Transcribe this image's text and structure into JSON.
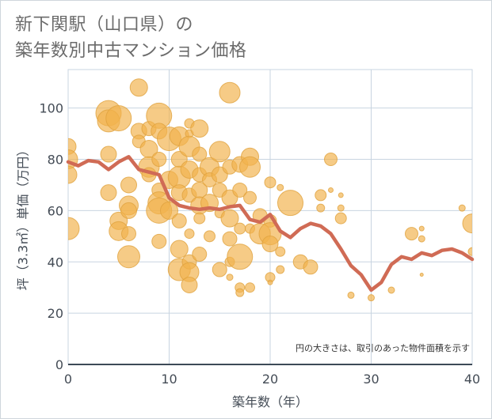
{
  "title": {
    "line1": "新下関駅（山口県）の",
    "line2": "築年数別中古マンション価格"
  },
  "colors": {
    "bubble_fill": "#f2b24c",
    "bubble_stroke": "#e0a23e",
    "line": "#d06b55",
    "grid": "#c8d4e0",
    "axis": "#3d4a57",
    "plot_bg": "#ffffff"
  },
  "chart_data": {
    "type": "scatter",
    "title": "新下関駅（山口県）の築年数別中古マンション価格",
    "xlabel": "築年数（年）",
    "ylabel": "坪（3.3㎡）単価（万円）",
    "xlim": [
      0,
      40
    ],
    "ylim": [
      0,
      115
    ],
    "x_ticks": [
      0,
      10,
      20,
      30,
      40
    ],
    "y_ticks": [
      0,
      20,
      40,
      60,
      80,
      100
    ],
    "grid": true,
    "note": "円の大きさは、取引のあった物件面積を示す",
    "series": [
      {
        "kind": "bubbles",
        "points": [
          {
            "x": 0,
            "y": 85,
            "s": 10
          },
          {
            "x": 0,
            "y": 80,
            "s": 12
          },
          {
            "x": 0,
            "y": 74,
            "s": 11
          },
          {
            "x": 0,
            "y": 53,
            "s": 14
          },
          {
            "x": 4,
            "y": 98,
            "s": 16
          },
          {
            "x": 4,
            "y": 95,
            "s": 14
          },
          {
            "x": 5,
            "y": 96,
            "s": 16
          },
          {
            "x": 4,
            "y": 82,
            "s": 10
          },
          {
            "x": 4,
            "y": 67,
            "s": 10
          },
          {
            "x": 5,
            "y": 56,
            "s": 11
          },
          {
            "x": 5,
            "y": 52,
            "s": 12
          },
          {
            "x": 6,
            "y": 70,
            "s": 10
          },
          {
            "x": 6,
            "y": 62,
            "s": 12
          },
          {
            "x": 6,
            "y": 60,
            "s": 10
          },
          {
            "x": 6,
            "y": 51,
            "s": 9
          },
          {
            "x": 6,
            "y": 42,
            "s": 14
          },
          {
            "x": 7,
            "y": 108,
            "s": 11
          },
          {
            "x": 7,
            "y": 91,
            "s": 10
          },
          {
            "x": 8,
            "y": 92,
            "s": 9
          },
          {
            "x": 7,
            "y": 87,
            "s": 8
          },
          {
            "x": 8,
            "y": 84,
            "s": 11
          },
          {
            "x": 8,
            "y": 77,
            "s": 13
          },
          {
            "x": 8,
            "y": 74,
            "s": 9
          },
          {
            "x": 9,
            "y": 97,
            "s": 16
          },
          {
            "x": 9,
            "y": 91,
            "s": 10
          },
          {
            "x": 9,
            "y": 80,
            "s": 9
          },
          {
            "x": 9,
            "y": 68,
            "s": 9
          },
          {
            "x": 9,
            "y": 63,
            "s": 14
          },
          {
            "x": 9,
            "y": 60,
            "s": 16
          },
          {
            "x": 9,
            "y": 48,
            "s": 9
          },
          {
            "x": 10,
            "y": 88,
            "s": 15
          },
          {
            "x": 10,
            "y": 72,
            "s": 11
          },
          {
            "x": 10,
            "y": 60,
            "s": 11
          },
          {
            "x": 11,
            "y": 89,
            "s": 12
          },
          {
            "x": 11,
            "y": 80,
            "s": 10
          },
          {
            "x": 11,
            "y": 73,
            "s": 14
          },
          {
            "x": 11,
            "y": 67,
            "s": 10
          },
          {
            "x": 11,
            "y": 56,
            "s": 9
          },
          {
            "x": 11,
            "y": 45,
            "s": 11
          },
          {
            "x": 11,
            "y": 37,
            "s": 14
          },
          {
            "x": 12,
            "y": 94,
            "s": 6
          },
          {
            "x": 12,
            "y": 90,
            "s": 5
          },
          {
            "x": 12,
            "y": 85,
            "s": 13
          },
          {
            "x": 12,
            "y": 76,
            "s": 11
          },
          {
            "x": 12,
            "y": 66,
            "s": 9
          },
          {
            "x": 12,
            "y": 51,
            "s": 6
          },
          {
            "x": 12,
            "y": 40,
            "s": 9
          },
          {
            "x": 12,
            "y": 36,
            "s": 12
          },
          {
            "x": 12,
            "y": 31,
            "s": 10
          },
          {
            "x": 13,
            "y": 92,
            "s": 11
          },
          {
            "x": 13,
            "y": 82,
            "s": 9
          },
          {
            "x": 13,
            "y": 74,
            "s": 9
          },
          {
            "x": 13,
            "y": 68,
            "s": 10
          },
          {
            "x": 13,
            "y": 62,
            "s": 11
          },
          {
            "x": 13,
            "y": 57,
            "s": 7
          },
          {
            "x": 13,
            "y": 43,
            "s": 9
          },
          {
            "x": 14,
            "y": 77,
            "s": 12
          },
          {
            "x": 14,
            "y": 72,
            "s": 9
          },
          {
            "x": 14,
            "y": 63,
            "s": 11
          },
          {
            "x": 14,
            "y": 50,
            "s": 7
          },
          {
            "x": 15,
            "y": 83,
            "s": 13
          },
          {
            "x": 15,
            "y": 74,
            "s": 10
          },
          {
            "x": 15,
            "y": 68,
            "s": 9
          },
          {
            "x": 15,
            "y": 59,
            "s": 6
          },
          {
            "x": 15,
            "y": 37,
            "s": 9
          },
          {
            "x": 16,
            "y": 106,
            "s": 13
          },
          {
            "x": 16,
            "y": 77,
            "s": 9
          },
          {
            "x": 16,
            "y": 65,
            "s": 10
          },
          {
            "x": 16,
            "y": 57,
            "s": 11
          },
          {
            "x": 16,
            "y": 49,
            "s": 9
          },
          {
            "x": 16,
            "y": 40,
            "s": 6
          },
          {
            "x": 16,
            "y": 34,
            "s": 4
          },
          {
            "x": 17,
            "y": 78,
            "s": 10
          },
          {
            "x": 17,
            "y": 68,
            "s": 9
          },
          {
            "x": 17,
            "y": 53,
            "s": 7
          },
          {
            "x": 17,
            "y": 42,
            "s": 16
          },
          {
            "x": 17,
            "y": 30,
            "s": 6
          },
          {
            "x": 17,
            "y": 28,
            "s": 5
          },
          {
            "x": 18,
            "y": 81,
            "s": 11
          },
          {
            "x": 18,
            "y": 77,
            "s": 13
          },
          {
            "x": 18,
            "y": 65,
            "s": 8
          },
          {
            "x": 18,
            "y": 53,
            "s": 6
          },
          {
            "x": 18,
            "y": 30,
            "s": 6
          },
          {
            "x": 19,
            "y": 58,
            "s": 9
          },
          {
            "x": 19,
            "y": 51,
            "s": 13
          },
          {
            "x": 20,
            "y": 71,
            "s": 7
          },
          {
            "x": 20,
            "y": 56,
            "s": 8
          },
          {
            "x": 20,
            "y": 51,
            "s": 14
          },
          {
            "x": 20,
            "y": 47,
            "s": 10
          },
          {
            "x": 20,
            "y": 34,
            "s": 6
          },
          {
            "x": 20,
            "y": 32,
            "s": 3
          },
          {
            "x": 21,
            "y": 69,
            "s": 4
          },
          {
            "x": 21,
            "y": 44,
            "s": 6
          },
          {
            "x": 21,
            "y": 37,
            "s": 5
          },
          {
            "x": 22,
            "y": 63,
            "s": 16
          },
          {
            "x": 23,
            "y": 40,
            "s": 9
          },
          {
            "x": 24,
            "y": 38,
            "s": 9
          },
          {
            "x": 25,
            "y": 66,
            "s": 7
          },
          {
            "x": 25,
            "y": 61,
            "s": 5
          },
          {
            "x": 26,
            "y": 80,
            "s": 8
          },
          {
            "x": 26,
            "y": 68,
            "s": 3
          },
          {
            "x": 27,
            "y": 66,
            "s": 3
          },
          {
            "x": 27,
            "y": 61,
            "s": 4
          },
          {
            "x": 27,
            "y": 57,
            "s": 7
          },
          {
            "x": 28,
            "y": 27,
            "s": 4
          },
          {
            "x": 30,
            "y": 26,
            "s": 4
          },
          {
            "x": 32,
            "y": 29,
            "s": 4
          },
          {
            "x": 34,
            "y": 51,
            "s": 8
          },
          {
            "x": 35,
            "y": 53,
            "s": 3
          },
          {
            "x": 35,
            "y": 49,
            "s": 4
          },
          {
            "x": 35,
            "y": 35,
            "s": 2
          },
          {
            "x": 39,
            "y": 61,
            "s": 4
          },
          {
            "x": 40,
            "y": 55,
            "s": 12
          },
          {
            "x": 40,
            "y": 44,
            "s": 5
          }
        ]
      },
      {
        "kind": "line",
        "x": [
          0,
          1,
          2,
          3,
          4,
          5,
          6,
          7,
          8,
          9,
          10,
          11,
          12,
          13,
          14,
          15,
          16,
          17,
          18,
          19,
          20,
          21,
          22,
          23,
          24,
          25,
          26,
          27,
          28,
          29,
          30,
          31,
          32,
          33,
          34,
          35,
          36,
          37,
          38,
          39,
          40
        ],
        "y": [
          79,
          77.5,
          79.5,
          79,
          76,
          79,
          81,
          76,
          75,
          74,
          65,
          62,
          61,
          60.5,
          61,
          60.5,
          61.5,
          62,
          56.5,
          55.5,
          58.5,
          52,
          49.5,
          53,
          55,
          54,
          51,
          45,
          38.5,
          35,
          29,
          32,
          39,
          42,
          41,
          43.5,
          42.5,
          44.5,
          45,
          43.5,
          41
        ]
      }
    ]
  }
}
